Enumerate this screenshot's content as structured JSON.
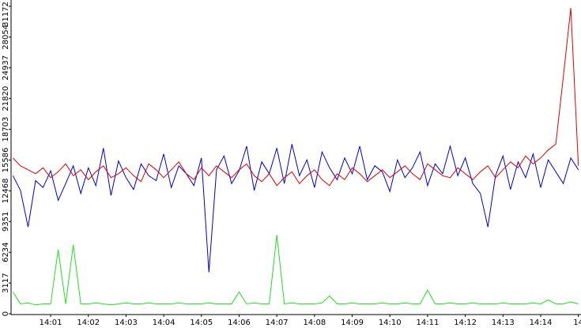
{
  "chart_data": {
    "type": "line",
    "x": [
      0,
      0.2,
      0.4,
      0.6,
      0.8,
      1,
      1.2,
      1.4,
      1.6,
      1.8,
      2,
      2.2,
      2.4,
      2.6,
      2.8,
      3,
      3.2,
      3.4,
      3.6,
      3.8,
      4,
      4.2,
      4.4,
      4.6,
      4.8,
      5,
      5.2,
      5.4,
      5.6,
      5.8,
      6,
      6.2,
      6.4,
      6.6,
      6.8,
      7,
      7.2,
      7.4,
      7.6,
      7.8,
      8,
      8.2,
      8.4,
      8.6,
      8.8,
      9,
      9.2,
      9.4,
      9.6,
      9.8,
      10,
      10.2,
      10.4,
      10.6,
      10.8,
      11,
      11.2,
      11.4,
      11.6,
      11.8,
      12,
      12.2,
      12.4,
      12.6,
      12.8,
      13,
      13.2,
      13.4,
      13.6,
      13.8,
      14,
      14.2,
      14.4,
      14.6,
      14.8,
      15
    ],
    "series": [
      {
        "color": "#0000cc",
        "values": [
          14000,
          12500,
          8800,
          13500,
          12800,
          14500,
          11500,
          13200,
          15000,
          12200,
          14800,
          13000,
          16800,
          12000,
          15500,
          13800,
          12600,
          15200,
          14000,
          13500,
          16200,
          12800,
          15000,
          14200,
          13000,
          15800,
          4200,
          14600,
          16000,
          13200,
          14500,
          17000,
          12500,
          15400,
          14200,
          16800,
          13200,
          17200,
          14000,
          15600,
          12800,
          16400,
          14800,
          13600,
          15800,
          14200,
          17000,
          13600,
          15000,
          14400,
          12400,
          15600,
          13800,
          14800,
          16400,
          13000,
          15200,
          14200,
          17000,
          14000,
          15800,
          13200,
          12200,
          8800,
          14000,
          16000,
          12600,
          15400,
          13800,
          16200,
          12800,
          15600,
          14400,
          13200,
          15800,
          14600
        ]
      },
      {
        "color": "#dd0000",
        "values": [
          15800,
          15000,
          14600,
          14200,
          14800,
          13800,
          14400,
          15200,
          14000,
          14600,
          13600,
          14400,
          15000,
          13800,
          14200,
          14800,
          14000,
          13400,
          15200,
          14600,
          13800,
          14600,
          15400,
          14200,
          13600,
          14800,
          14000,
          15000,
          14400,
          13800,
          14600,
          15200,
          14000,
          13400,
          14200,
          13000,
          13800,
          14400,
          13200,
          14000,
          14600,
          13600,
          13000,
          14200,
          13600,
          14800,
          14200,
          13400,
          14000,
          14600,
          13800,
          14400,
          15000,
          14200,
          13600,
          15200,
          14600,
          14000,
          13800,
          14800,
          14200,
          13600,
          14400,
          15000,
          13800,
          14600,
          15400,
          14800,
          16000,
          15200,
          15800,
          16600,
          17200,
          24000,
          31000,
          15000
        ]
      },
      {
        "color": "#22dd22",
        "values": [
          2200,
          1000,
          1100,
          900,
          1000,
          1000,
          6500,
          1000,
          7000,
          1000,
          1000,
          1100,
          1000,
          900,
          1000,
          1100,
          1000,
          1000,
          1100,
          1000,
          1000,
          1000,
          1100,
          1000,
          1000,
          1000,
          1100,
          1000,
          1000,
          1000,
          2200,
          1000,
          1100,
          1000,
          1000,
          8000,
          1000,
          1100,
          1000,
          1000,
          1000,
          1100,
          1800,
          1000,
          1000,
          1100,
          1000,
          1000,
          1000,
          1100,
          1000,
          1000,
          1100,
          1000,
          1000,
          2400,
          1000,
          1000,
          1100,
          1000,
          1000,
          1100,
          1000,
          1000,
          1000,
          1100,
          1000,
          1000,
          1000,
          1100,
          1000,
          1400,
          1000,
          1000,
          1200,
          1000
        ]
      }
    ],
    "xlim": [
      -0.05,
      15.07
    ],
    "xticks": [
      {
        "value": 1,
        "label": "14:01"
      },
      {
        "value": 2,
        "label": "14:02"
      },
      {
        "value": 3,
        "label": "14:03"
      },
      {
        "value": 4,
        "label": "14:04"
      },
      {
        "value": 5,
        "label": "14:05"
      },
      {
        "value": 6,
        "label": "14:06"
      },
      {
        "value": 7,
        "label": "14:07"
      },
      {
        "value": 8,
        "label": "14:08"
      },
      {
        "value": 9,
        "label": "14:09"
      },
      {
        "value": 10,
        "label": "14:10"
      },
      {
        "value": 11,
        "label": "14:11"
      },
      {
        "value": 12,
        "label": "14:12"
      },
      {
        "value": 13,
        "label": "14:13"
      },
      {
        "value": 14,
        "label": "14:14"
      },
      {
        "value": 15,
        "label": "14"
      }
    ],
    "ylim": [
      0,
      31172
    ],
    "yticks": [
      0,
      3117,
      6234,
      9351,
      12468,
      15586,
      18703,
      21820,
      24937,
      28054,
      31172
    ]
  }
}
